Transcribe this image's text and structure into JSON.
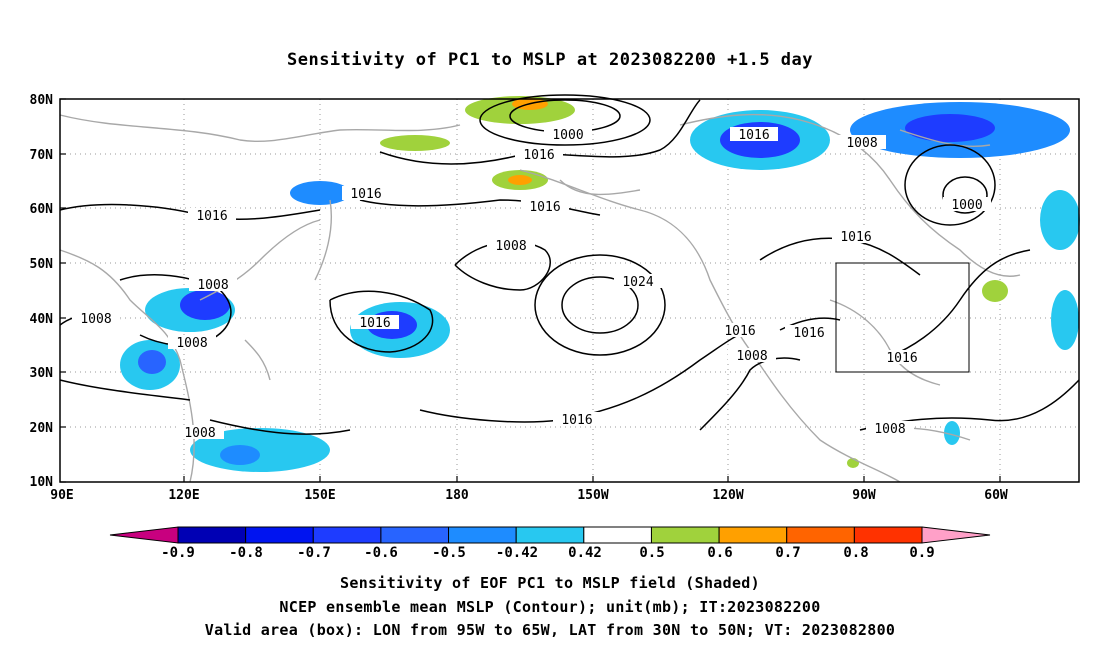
{
  "title": "Sensitivity of PC1 to MSLP at 2023082200 +1.5 day",
  "lat_labels": [
    "80N",
    "70N",
    "60N",
    "50N",
    "40N",
    "30N",
    "20N",
    "10N"
  ],
  "lon_labels": [
    "90E",
    "120E",
    "150E",
    "180",
    "150W",
    "120W",
    "90W",
    "60W"
  ],
  "contours": {
    "1000_a": "1000",
    "1016_a": "1016",
    "1016_b": "1016",
    "1016_c": "1016",
    "1016_d": "1016",
    "1016_e": "1016",
    "1008_a": "1008",
    "1000_b": "1000",
    "1016_f": "1016",
    "1008_b": "1008",
    "1024": "1024",
    "1008_c": "1008",
    "1016_g": "1016",
    "1008_d": "1008",
    "1008_e": "1008",
    "1008_f": "1008",
    "1016_h": "1016",
    "1016_i": "1016",
    "1016_j": "1016",
    "1008_g": "1008",
    "1016_k": "1016",
    "1008_h": "1008"
  },
  "colorbar": {
    "labels": [
      "-0.9",
      "-0.8",
      "-0.7",
      "-0.6",
      "-0.5",
      "-0.42",
      "0.42",
      "0.5",
      "0.6",
      "0.7",
      "0.8",
      "0.9"
    ],
    "colors": [
      "#0000b4",
      "#0014f0",
      "#1e3cff",
      "#2864ff",
      "#1e8cff",
      "#28c8f0",
      "#ffffff",
      "#a0d23c",
      "#ffa000",
      "#ff6400",
      "#ff3200",
      "#ff0000"
    ],
    "low_end_color": "#c8007f",
    "high_end_color": "#ffa0c8"
  },
  "captions": {
    "line1": "Sensitivity of EOF PC1 to MSLP field (Shaded)",
    "line2": "NCEP ensemble mean MSLP (Contour); unit(mb); IT:2023082200",
    "line3": "Valid area (box): LON from 95W to 65W, LAT from 30N to 50N; VT: 2023082800"
  }
}
